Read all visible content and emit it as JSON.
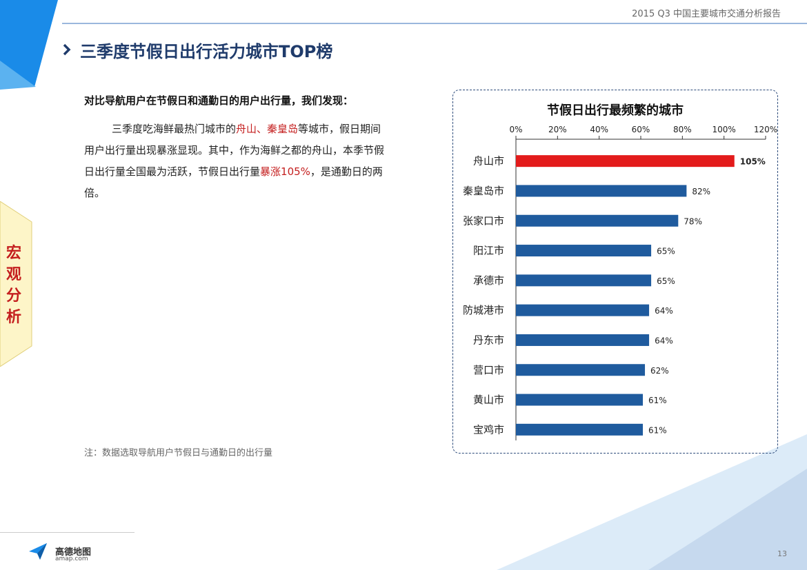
{
  "header": {
    "report_title": "2015 Q3 中国主要城市交通分析报告"
  },
  "page_title": "三季度节假日出行活力城市TOP榜",
  "side_tab": {
    "label_chars": [
      "宏",
      "观",
      "分",
      "析"
    ]
  },
  "intro": {
    "heading": "对比导航用户在节假日和通勤日的用户出行量，我们发现：",
    "p1": "三季度吃海鲜最热门城市的",
    "p1_hl": "舟山、秦皇岛",
    "p2": "等城市，假日期间用户出行量出现暴涨显现。其中，作为海鲜之都的舟山，本季节假日出行量全国最为活跃，节假日出行量",
    "p2_hl1": "暴涨",
    "p2_hl2": "105%",
    "p3": "，是通勤日的两倍。"
  },
  "footnote": "注：数据选取导航用户节假日与通勤日的出行量",
  "footer": {
    "logo_text": "高德地图",
    "logo_sub": "amap.com",
    "page_number": "13"
  },
  "colors": {
    "highlight_bar": "#e31b1b",
    "bar": "#1f5b9e",
    "highlight_text": "#c41e1e",
    "title": "#1f3b6b"
  },
  "chart_data": {
    "type": "bar",
    "orientation": "horizontal",
    "title": "节假日出行最频繁的城市",
    "categories": [
      "舟山市",
      "秦皇岛市",
      "张家口市",
      "阳江市",
      "承德市",
      "防城港市",
      "丹东市",
      "营口市",
      "黄山市",
      "宝鸡市"
    ],
    "values": [
      105,
      82,
      78,
      65,
      65,
      64,
      64,
      62,
      61,
      61
    ],
    "value_labels": [
      "105%",
      "82%",
      "78%",
      "65%",
      "65%",
      "64%",
      "64%",
      "62%",
      "61%",
      "61%"
    ],
    "highlight_index": 0,
    "xlim": [
      0,
      120
    ],
    "x_ticks": [
      0,
      20,
      40,
      60,
      80,
      100,
      120
    ],
    "x_tick_labels": [
      "0%",
      "20%",
      "40%",
      "60%",
      "80%",
      "100%",
      "120%"
    ],
    "x_axis_position": "top",
    "grid": false,
    "legend": "none"
  }
}
